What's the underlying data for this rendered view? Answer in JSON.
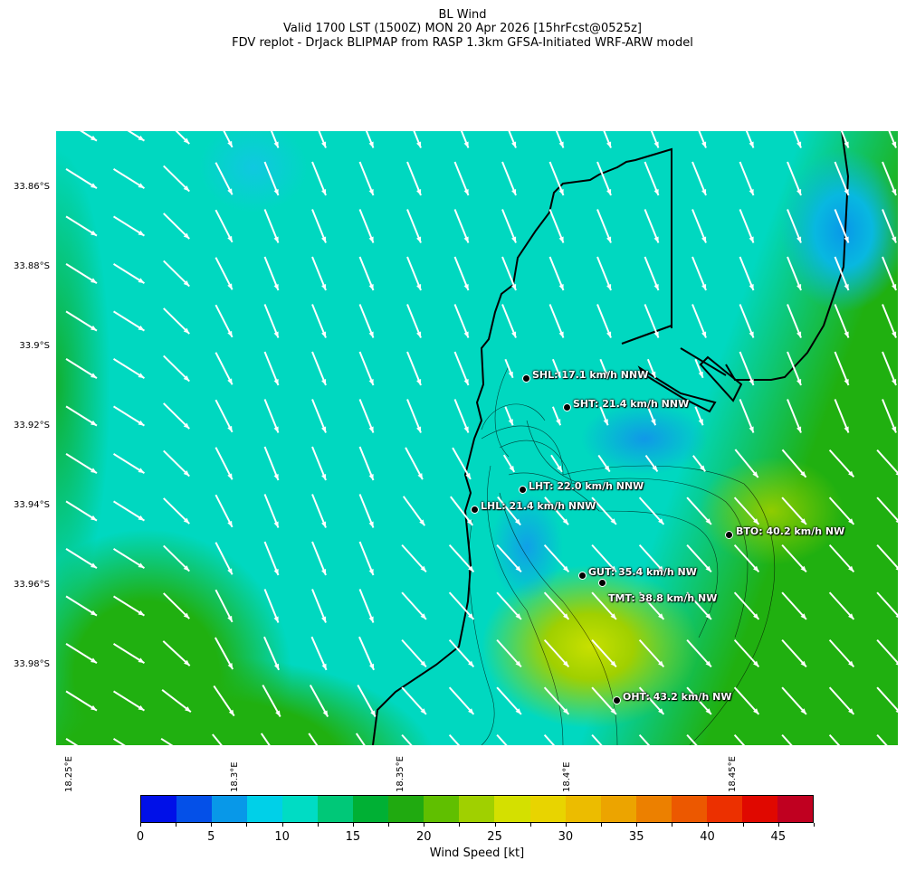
{
  "title": {
    "line1": "BL Wind",
    "line2": "Valid 1700 LST (1500Z) MON 20 Apr 2026 [15hrFcst@0525z]",
    "line3": "FDV replot - DrJack BLIPMAP from RASP 1.3km GFSA-Initiated WRF-ARW model"
  },
  "y_ticks": [
    "33.86°S",
    "33.88°S",
    "33.9°S",
    "33.92°S",
    "33.94°S",
    "33.96°S",
    "33.98°S"
  ],
  "x_ticks": [
    "18.25°E",
    "18.3°E",
    "18.35°E",
    "18.4°E",
    "18.45°E"
  ],
  "stations": [
    {
      "label": "SHL: 17.1 km/h NNW"
    },
    {
      "label": "SHT: 21.4 km/h NNW"
    },
    {
      "label": "LHT: 22.0 km/h NNW"
    },
    {
      "label": "LHL: 21.4 km/h NNW"
    },
    {
      "label": "BTO: 40.2 km/h NW"
    },
    {
      "label": "GUT: 35.4 km/h NW"
    },
    {
      "label": "TMT: 38.8 km/h NW"
    },
    {
      "label": "OHT: 43.2 km/h NW"
    }
  ],
  "colorbar": {
    "label": "Wind Speed [kt]",
    "ticks": [
      "0",
      "5",
      "10",
      "15",
      "20",
      "25",
      "30",
      "35",
      "40",
      "45"
    ],
    "colors": [
      "#0010e8",
      "#0450e8",
      "#0898e8",
      "#00d0e8",
      "#00dcc4",
      "#00c878",
      "#00b034",
      "#20aa10",
      "#60bf00",
      "#a0d000",
      "#d4e000",
      "#e8d400",
      "#ecbc00",
      "#eca400",
      "#ec8000",
      "#ec5800",
      "#ec3000",
      "#e00800",
      "#c00020"
    ]
  }
}
